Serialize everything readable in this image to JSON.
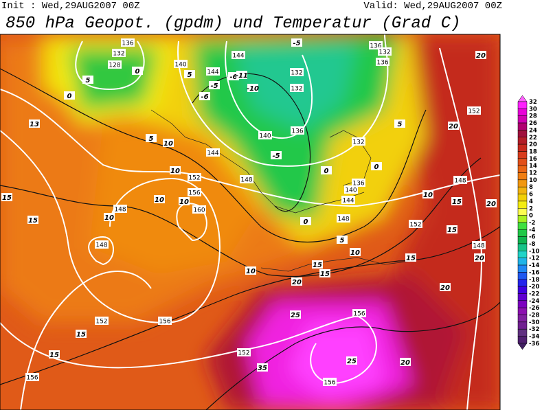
{
  "header": {
    "init": "Init : Wed,29AUG2007 00Z",
    "valid": "Valid: Wed,29AUG2007 00Z",
    "title": "850 hPa Geopot. (gpdm) und Temperatur (Grad C)"
  },
  "colorbar": {
    "labels": [
      32,
      30,
      28,
      26,
      24,
      22,
      20,
      18,
      16,
      14,
      12,
      10,
      8,
      6,
      4,
      2,
      0,
      -2,
      -4,
      -6,
      -8,
      -10,
      -12,
      -14,
      -16,
      -18,
      -20,
      -22,
      -24,
      -26,
      -28,
      -30,
      -32,
      -34,
      -36
    ],
    "colors": [
      "#ff60ff",
      "#ff20ff",
      "#e800d8",
      "#d000b0",
      "#b00070",
      "#a0103c",
      "#b41e28",
      "#c82a1e",
      "#d83c1c",
      "#e2501a",
      "#ea6616",
      "#f07e12",
      "#f29810",
      "#f2b410",
      "#f2d008",
      "#f4ec10",
      "#fcfc50",
      "#a8f020",
      "#40e040",
      "#20c848",
      "#10b450",
      "#18c488",
      "#20d4c8",
      "#20b4e8",
      "#2088f4",
      "#2058f0",
      "#2424ec",
      "#4000e0",
      "#6000d0",
      "#7c00c0",
      "#8c10b0",
      "#8020a0",
      "#702090",
      "#603080",
      "#502070",
      "#402060"
    ]
  },
  "height_labels": [
    136,
    132,
    128,
    140,
    144,
    144,
    132,
    132,
    136,
    140,
    144,
    152,
    156,
    160,
    148,
    148,
    148,
    152,
    156,
    152,
    156,
    156,
    156,
    136,
    132,
    136,
    132,
    136,
    140,
    144,
    148,
    152,
    148,
    152,
    148
  ],
  "temperature_labels": [
    -5,
    -6,
    -11,
    -5,
    -10,
    -6,
    -5,
    0,
    0,
    5,
    5,
    5,
    10,
    10,
    10,
    10,
    10,
    13,
    15,
    15,
    15,
    15,
    0,
    0,
    0,
    5,
    5,
    10,
    10,
    10,
    15,
    15,
    15,
    15,
    15,
    20,
    20,
    20,
    20,
    20,
    20,
    20,
    25,
    25,
    35
  ]
}
